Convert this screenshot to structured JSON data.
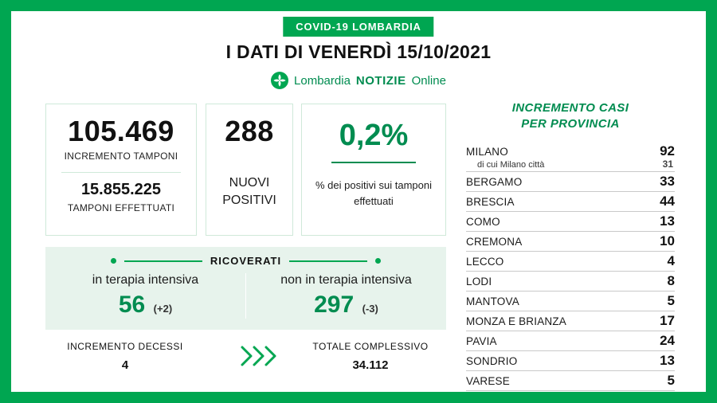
{
  "colors": {
    "frame_green": "#00A651",
    "brand_green": "#008C50",
    "light_green_bg": "#E7F3EC",
    "border_light_green": "#CFE9D9",
    "row_divider": "#C9C9C9",
    "text_dark": "#111111"
  },
  "header": {
    "badge": "COVID-19 LOMBARDIA",
    "title": "I DATI DI VENERDÌ 15/10/2021",
    "logo": {
      "name": "Lombardia",
      "bold": "NOTIZIE",
      "suffix": "Online"
    }
  },
  "stats": {
    "tamponi": {
      "increment_value": "105.469",
      "increment_label": "INCREMENTO TAMPONI",
      "total_value": "15.855.225",
      "total_label": "TAMPONI EFFETTUATI"
    },
    "positivi": {
      "value": "288",
      "label": "NUOVI POSITIVI"
    },
    "percentuale": {
      "value": "0,2%",
      "label": "% dei positivi sui tamponi effettuati"
    }
  },
  "ricoverati": {
    "title": "RICOVERATI",
    "intensiva": {
      "label": "in terapia intensiva",
      "value": "56",
      "delta": "(+2)"
    },
    "non_intensiva": {
      "label": "non in terapia intensiva",
      "value": "297",
      "delta": "(-3)"
    }
  },
  "decessi": {
    "label": "INCREMENTO DECESSI",
    "value": "4"
  },
  "totale": {
    "label": "TOTALE COMPLESSIVO",
    "value": "34.112"
  },
  "province_panel": {
    "title_line1": "INCREMENTO CASI",
    "title_line2": "PER PROVINCIA",
    "rows": [
      {
        "name": "MILANO",
        "value": "92",
        "sub_name": "di cui Milano città",
        "sub_value": "31"
      },
      {
        "name": "BERGAMO",
        "value": "33"
      },
      {
        "name": "BRESCIA",
        "value": "44"
      },
      {
        "name": "COMO",
        "value": "13"
      },
      {
        "name": "CREMONA",
        "value": "10"
      },
      {
        "name": "LECCO",
        "value": "4"
      },
      {
        "name": "LODI",
        "value": "8"
      },
      {
        "name": "MANTOVA",
        "value": "5"
      },
      {
        "name": "MONZA E BRIANZA",
        "value": "17"
      },
      {
        "name": "PAVIA",
        "value": "24"
      },
      {
        "name": "SONDRIO",
        "value": "13"
      },
      {
        "name": "VARESE",
        "value": "5"
      }
    ]
  },
  "chart_data": {
    "type": "table",
    "title": "I DATI DI VENERDÌ 15/10/2021 — COVID-19 LOMBARDIA",
    "summary": {
      "incremento_tamponi": 105469,
      "tamponi_effettuati": 15855225,
      "nuovi_positivi": 288,
      "percentuale_positivi_su_tamponi": 0.2,
      "ricoverati_terapia_intensiva": 56,
      "ricoverati_terapia_intensiva_delta": 2,
      "ricoverati_non_terapia_intensiva": 297,
      "ricoverati_non_terapia_intensiva_delta": -3,
      "incremento_decessi": 4,
      "totale_complessivo_decessi": 34112
    },
    "series_label": "Incremento casi per provincia",
    "categories": [
      "MILANO",
      "di cui Milano città",
      "BERGAMO",
      "BRESCIA",
      "COMO",
      "CREMONA",
      "LECCO",
      "LODI",
      "MANTOVA",
      "MONZA E BRIANZA",
      "PAVIA",
      "SONDRIO",
      "VARESE"
    ],
    "values": [
      92,
      31,
      33,
      44,
      13,
      10,
      4,
      8,
      5,
      17,
      24,
      13,
      5
    ]
  }
}
